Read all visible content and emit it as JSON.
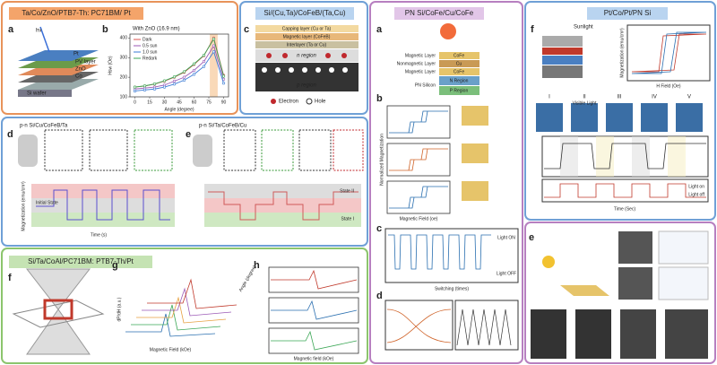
{
  "panels": {
    "p1": {
      "title": "Ta/Co/ZnO/PTB7-Th: PC71BM/ Pt",
      "letters": [
        "a",
        "b"
      ],
      "labels": [
        "hν",
        "Pt",
        "PV layer",
        "ZnO",
        "Co",
        "Si wafer"
      ]
    },
    "p2": {
      "title": "Si/(Cu,Ta)/CoFeB/(Ta,Cu)",
      "letter": "c",
      "labels": [
        "Capping layer (Cu or Ta)",
        "Magnetic layer (CoFeB)",
        "Interlayer (Ta or Cu)",
        "n region",
        "p region",
        "Electron",
        "Hole"
      ]
    },
    "p3": {
      "letters": [
        "d",
        "e"
      ],
      "titles": [
        "p-n Si/Cu/CoFeB/Ta",
        "p-n Si/Ta/CoFeB/Cu"
      ],
      "labels": [
        "Initial State",
        "State I",
        "State II",
        "Time (s)",
        "Magnetization (emu/cm³)"
      ]
    },
    "p4": {
      "title": "Si/Ta/CoAl/PC71BM: PTB7-Th/Pt",
      "letters": [
        "f",
        "g",
        "h"
      ],
      "labels": [
        "dP/dH (a.u.)",
        "Magnetic Field (kOe)",
        "Angle (degree)",
        "Magnetic field (kOe)"
      ]
    },
    "p5": {
      "title": "PN Si/CoFe/Cu/CoFe",
      "letters": [
        "a",
        "b",
        "c",
        "d"
      ],
      "labels": [
        "Magnetic Layer",
        "Nonmagnetic Layer",
        "Magnetic Layer",
        "PN Silicon",
        "CoFe",
        "Cu",
        "CoFe",
        "N Region",
        "P Region",
        "Normalized Magnetization",
        "Magnetic Field (oe)",
        "Switching (times)",
        "Light ON",
        "Light OFF"
      ]
    },
    "p6": {
      "title": "Pt/Co/Pt/PN Si",
      "letter": "f",
      "labels": [
        "Sunlight",
        "Magnetization (emu/cm³)",
        "H Field (Oe)",
        "Time (Sec)",
        "Light on",
        "Light off",
        "Visible Light"
      ],
      "numerals": [
        "I",
        "II",
        "III",
        "IV",
        "V"
      ]
    },
    "p7": {
      "letter": "e"
    }
  },
  "chart_data": {
    "type": "line",
    "title": "With ZnO (16.9 nm)",
    "x_label": "Angle (degree)",
    "y_label": "Hsw (Oe)",
    "x": [
      0,
      10,
      20,
      30,
      40,
      50,
      60,
      70,
      80,
      90
    ],
    "series": [
      {
        "name": "Dark",
        "color": "#d9534f",
        "values": [
          150,
          155,
          165,
          180,
          200,
          225,
          265,
          310,
          400,
          210
        ]
      },
      {
        "name": "0.5 sun",
        "color": "#9b59b6",
        "values": [
          140,
          145,
          150,
          160,
          180,
          200,
          235,
          280,
          360,
          190
        ]
      },
      {
        "name": "1.0 sun",
        "color": "#3a7bd5",
        "values": [
          130,
          135,
          140,
          150,
          165,
          185,
          215,
          255,
          330,
          170
        ]
      },
      {
        "name": "Redark",
        "color": "#3aa655",
        "values": [
          150,
          156,
          166,
          182,
          202,
          228,
          268,
          312,
          395,
          205
        ]
      }
    ],
    "xlim": [
      -5,
      95
    ],
    "xticks": [
      0,
      15,
      30,
      45,
      60,
      75,
      90
    ],
    "ylim": [
      100,
      420
    ],
    "yticks": [
      100,
      200,
      300,
      400
    ]
  }
}
